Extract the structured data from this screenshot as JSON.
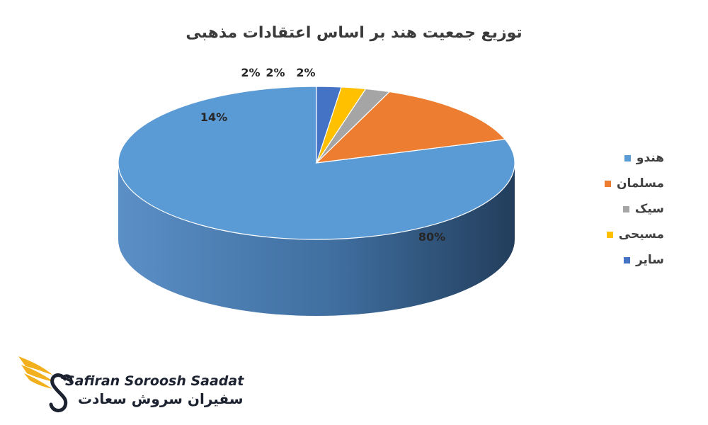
{
  "chart_data": {
    "type": "pie",
    "title": "توزیع جمعیت هند بر اساس اعتقادات مذهبی",
    "categories": [
      "هندو",
      "مسلمان",
      "سیک",
      "مسیحی",
      "سایر"
    ],
    "values": [
      80,
      14,
      2,
      2,
      2
    ],
    "labels": [
      "80%",
      "14%",
      "2%",
      "2%",
      "2%"
    ],
    "colors": [
      "#5b9bd5",
      "#ed7d31",
      "#a5a5a5",
      "#ffc000",
      "#4472c4"
    ],
    "legend_position": "right",
    "style": "3d"
  },
  "brand": {
    "latin": "Safiran Soroosh Saadat",
    "persian": "سفیران سروش سعادت",
    "accent": "#f2b01e"
  }
}
